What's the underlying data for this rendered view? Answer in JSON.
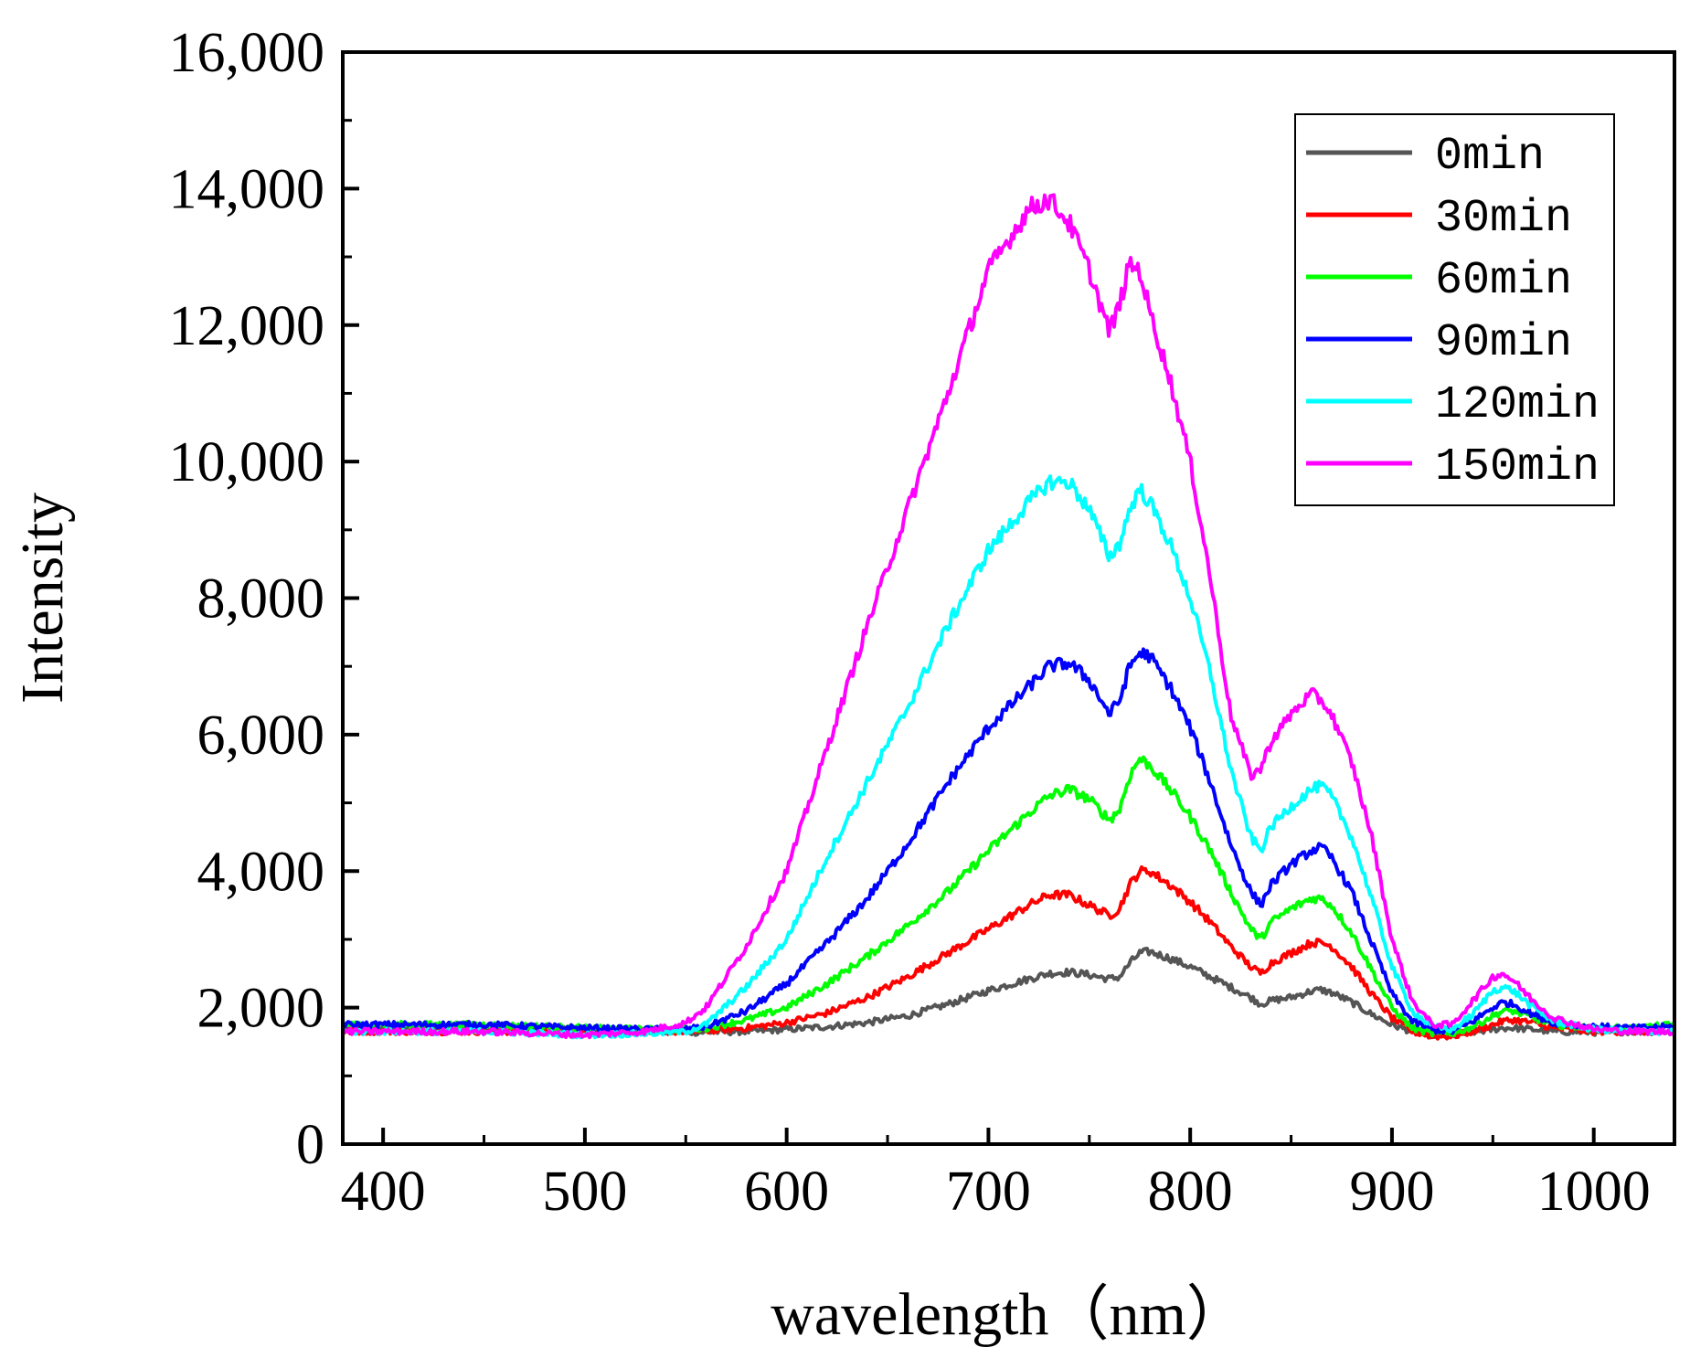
{
  "chart_data": {
    "type": "line",
    "xlabel": "wavelength（nm）",
    "ylabel": "Intensity",
    "xlim": [
      380,
      1040
    ],
    "ylim": [
      0,
      16000
    ],
    "x_ticks": [
      400,
      500,
      600,
      700,
      800,
      900,
      1000
    ],
    "x_tick_labels": [
      "400",
      "500",
      "600",
      "700",
      "800",
      "900",
      "1000"
    ],
    "y_ticks": [
      0,
      2000,
      4000,
      6000,
      8000,
      10000,
      12000,
      14000,
      16000
    ],
    "y_tick_labels": [
      "0",
      "2,000",
      "4,000",
      "6,000",
      "8,000",
      "10,000",
      "12,000",
      "14,000",
      "16,000"
    ],
    "grid": false,
    "legend_position": "top-right",
    "x": [
      380,
      400,
      450,
      500,
      530,
      550,
      560,
      580,
      600,
      620,
      640,
      660,
      680,
      700,
      720,
      730,
      740,
      750,
      760,
      765,
      770,
      775,
      780,
      790,
      800,
      810,
      820,
      830,
      835,
      840,
      850,
      860,
      865,
      870,
      880,
      890,
      900,
      910,
      920,
      930,
      940,
      950,
      955,
      960,
      970,
      980,
      1000,
      1020,
      1040
    ],
    "series": [
      {
        "name": "0min",
        "color": "#555555",
        "values": [
          1700,
          1700,
          1700,
          1680,
          1650,
          1640,
          1640,
          1650,
          1680,
          1720,
          1780,
          1880,
          2050,
          2250,
          2420,
          2500,
          2520,
          2480,
          2420,
          2450,
          2650,
          2800,
          2820,
          2720,
          2600,
          2450,
          2300,
          2150,
          2050,
          2100,
          2150,
          2240,
          2260,
          2220,
          2080,
          1900,
          1750,
          1650,
          1600,
          1600,
          1640,
          1680,
          1700,
          1700,
          1680,
          1650,
          1640,
          1650,
          1650
        ]
      },
      {
        "name": "30min",
        "color": "#ff0000",
        "values": [
          1650,
          1650,
          1650,
          1650,
          1650,
          1650,
          1660,
          1700,
          1780,
          1920,
          2150,
          2450,
          2800,
          3150,
          3500,
          3650,
          3650,
          3500,
          3350,
          3450,
          3800,
          4000,
          4000,
          3800,
          3550,
          3250,
          2900,
          2600,
          2500,
          2650,
          2800,
          2950,
          2950,
          2900,
          2600,
          2200,
          1850,
          1650,
          1580,
          1580,
          1650,
          1750,
          1800,
          1820,
          1780,
          1700,
          1650,
          1650,
          1650
        ]
      },
      {
        "name": "60min",
        "color": "#00ff00",
        "values": [
          1750,
          1750,
          1750,
          1700,
          1680,
          1680,
          1700,
          1820,
          2000,
          2350,
          2750,
          3200,
          3700,
          4300,
          4850,
          5100,
          5200,
          5050,
          4750,
          4900,
          5400,
          5650,
          5550,
          5200,
          4800,
          4300,
          3700,
          3150,
          3000,
          3250,
          3450,
          3600,
          3600,
          3500,
          3100,
          2550,
          2000,
          1700,
          1620,
          1620,
          1720,
          1880,
          1950,
          1950,
          1850,
          1750,
          1700,
          1700,
          1750
        ]
      },
      {
        "name": "90min",
        "color": "#0000ff",
        "values": [
          1750,
          1750,
          1750,
          1700,
          1680,
          1680,
          1720,
          1950,
          2350,
          2950,
          3600,
          4400,
          5300,
          6100,
          6700,
          7000,
          7050,
          6800,
          6300,
          6500,
          7000,
          7200,
          7150,
          6700,
          6100,
          5300,
          4400,
          3700,
          3500,
          3800,
          4100,
          4300,
          4350,
          4200,
          3700,
          2950,
          2200,
          1800,
          1680,
          1650,
          1800,
          2000,
          2080,
          2050,
          1900,
          1780,
          1720,
          1700,
          1720
        ]
      },
      {
        "name": "120min",
        "color": "#00ffff",
        "values": [
          1650,
          1650,
          1650,
          1600,
          1620,
          1650,
          1750,
          2300,
          3000,
          4200,
          5300,
          6400,
          7600,
          8700,
          9400,
          9700,
          9700,
          9300,
          8600,
          8800,
          9300,
          9600,
          9400,
          8800,
          8000,
          6900,
          5500,
          4500,
          4300,
          4650,
          4950,
          5200,
          5250,
          5100,
          4500,
          3600,
          2600,
          1950,
          1720,
          1680,
          1900,
          2250,
          2300,
          2250,
          2000,
          1800,
          1680,
          1650,
          1650
        ]
      },
      {
        "name": "150min",
        "color": "#ff00ff",
        "values": [
          1650,
          1650,
          1650,
          1600,
          1650,
          1780,
          2000,
          2900,
          4000,
          5800,
          7600,
          9300,
          11000,
          12800,
          13700,
          13850,
          13500,
          12800,
          11900,
          12300,
          12900,
          12800,
          12200,
          11200,
          10000,
          8300,
          6300,
          5400,
          5500,
          5900,
          6300,
          6600,
          6500,
          6300,
          5600,
          4500,
          3000,
          2100,
          1750,
          1750,
          2100,
          2450,
          2500,
          2400,
          2100,
          1850,
          1680,
          1650,
          1650
        ]
      }
    ]
  }
}
